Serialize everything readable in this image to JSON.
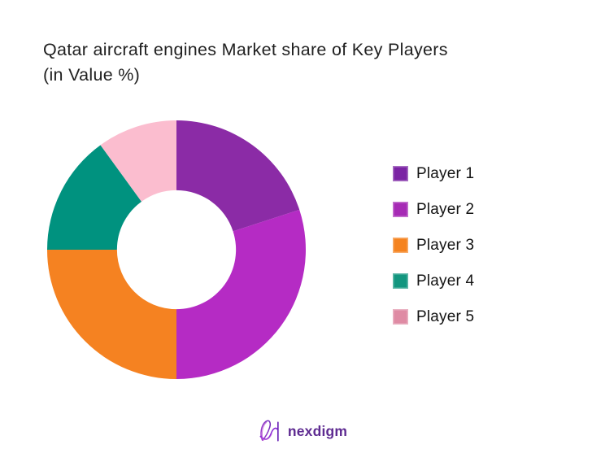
{
  "title": {
    "line1": "Qatar aircraft engines Market share of Key Players",
    "line2": "(in Value %)",
    "color": "#212121"
  },
  "chart_data": {
    "type": "pie",
    "subtype": "donut",
    "title": "Qatar aircraft engines Market share of Key Players (in Value %)",
    "categories": [
      "Player 1",
      "Player 2",
      "Player 3",
      "Player 4",
      "Player 5"
    ],
    "values": [
      20,
      30,
      25,
      15,
      10
    ],
    "unit": "% of value",
    "slice_colors": [
      "#8B2BA6",
      "#B52BC4",
      "#F58221",
      "#00927F",
      "#FBBDCF"
    ],
    "legend_colors": [
      "#7B24A4",
      "#A62BB5",
      "#F5831F",
      "#13967F",
      "#DF8BA4"
    ],
    "start_angle_deg": 0,
    "direction": "clockwise",
    "inner_radius_ratio": 0.46,
    "legend_position": "right",
    "data_labels": false,
    "background": "#ffffff"
  },
  "footer": {
    "logo_text": "nexdigm",
    "logo_color": "#5E2B91",
    "logo_accent_1": "#7C3AED",
    "logo_accent_2": "#A93FD1"
  }
}
